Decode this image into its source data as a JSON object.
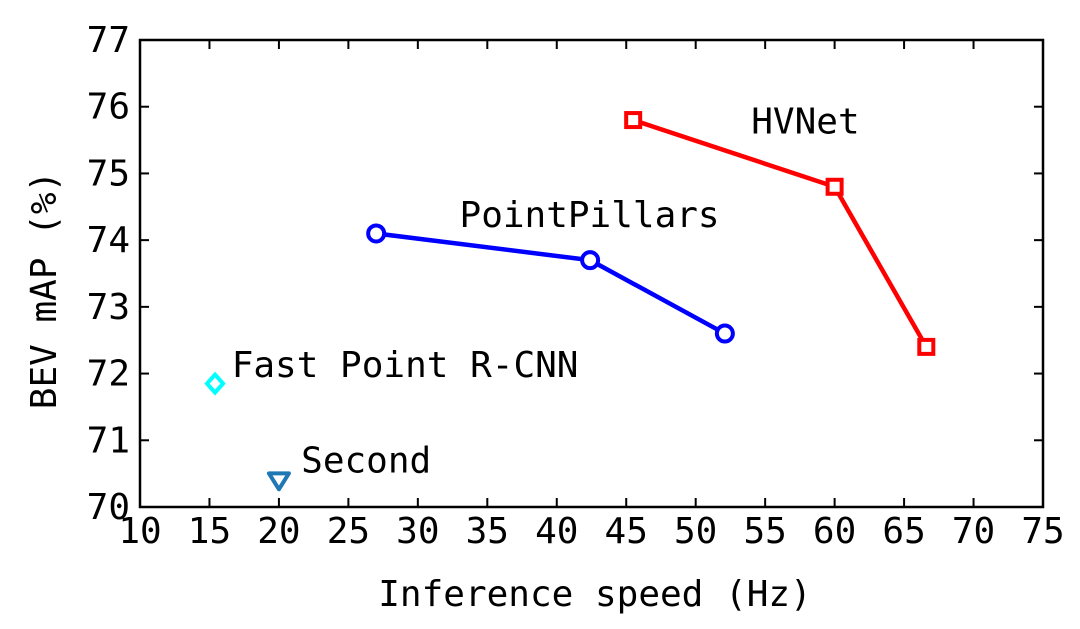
{
  "chart_data": {
    "type": "scatter",
    "xlabel": "Inference speed (Hz)",
    "ylabel": "BEV mAP (%)",
    "xlim": [
      10,
      75
    ],
    "ylim": [
      70,
      77
    ],
    "xticks": [
      10,
      15,
      20,
      25,
      30,
      35,
      40,
      45,
      50,
      55,
      60,
      65,
      70,
      75
    ],
    "yticks": [
      70,
      71,
      72,
      73,
      74,
      75,
      76,
      77
    ],
    "grid": false,
    "series": [
      {
        "name": "HVNet",
        "color": "#ff0000",
        "marker": "square",
        "connected": true,
        "points": [
          {
            "x": 45.5,
            "y": 75.8
          },
          {
            "x": 60.0,
            "y": 74.8
          },
          {
            "x": 66.6,
            "y": 72.4
          }
        ]
      },
      {
        "name": "PointPillars",
        "color": "#0000ff",
        "marker": "circle",
        "connected": true,
        "points": [
          {
            "x": 27.0,
            "y": 74.1
          },
          {
            "x": 42.4,
            "y": 73.7
          },
          {
            "x": 52.1,
            "y": 72.6
          }
        ]
      },
      {
        "name": "Fast Point R-CNN",
        "color": "#00ffff",
        "marker": "diamond",
        "connected": false,
        "points": [
          {
            "x": 15.4,
            "y": 71.85
          }
        ]
      },
      {
        "name": "Second",
        "color": "#1f77b4",
        "marker": "triangle-down",
        "connected": false,
        "points": [
          {
            "x": 20.0,
            "y": 70.4
          }
        ]
      }
    ],
    "annotations": [
      {
        "text": "HVNet",
        "x": 54.0,
        "y": 75.6
      },
      {
        "text": "PointPillars",
        "x": 33.0,
        "y": 74.2
      },
      {
        "text": "Fast Point R-CNN",
        "x": 16.6,
        "y": 71.95
      },
      {
        "text": "Second",
        "x": 21.6,
        "y": 70.52
      }
    ]
  }
}
